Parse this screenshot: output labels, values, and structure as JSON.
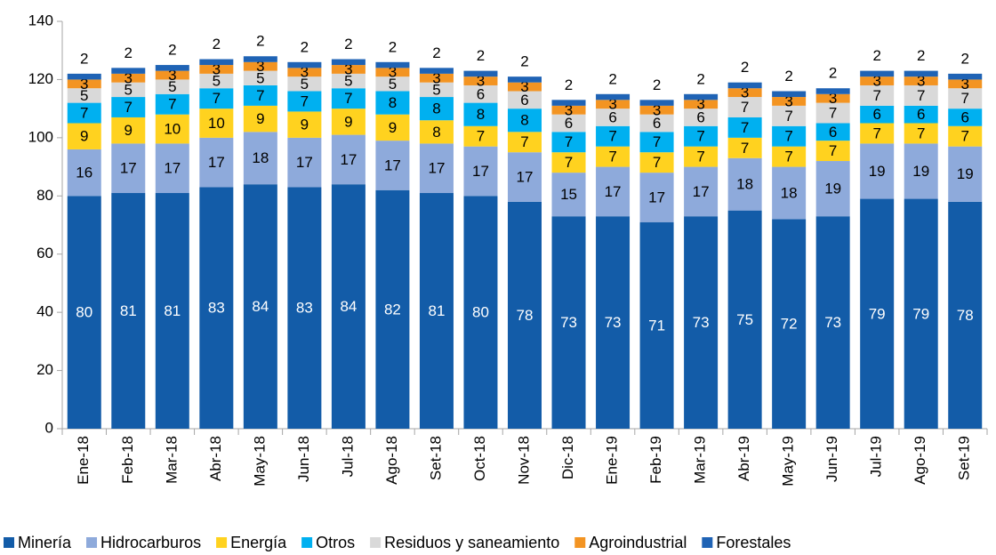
{
  "chart_data": {
    "type": "stacked_bar",
    "categories": [
      "Ene-18",
      "Feb-18",
      "Mar-18",
      "Abr-18",
      "May-18",
      "Jun-18",
      "Jul-18",
      "Ago-18",
      "Set-18",
      "Oct-18",
      "Nov-18",
      "Dic-18",
      "Ene-19",
      "Feb-19",
      "Mar-19",
      "Abr-19",
      "May-19",
      "Jun-19",
      "Jul-19",
      "Ago-19",
      "Set-19"
    ],
    "series": [
      {
        "name": "Minería",
        "color": "#135ca8",
        "values": [
          80,
          81,
          81,
          83,
          84,
          83,
          84,
          82,
          81,
          80,
          78,
          73,
          73,
          71,
          73,
          75,
          72,
          73,
          79,
          79,
          78
        ]
      },
      {
        "name": "Hidrocarburos",
        "color": "#8eaadb",
        "values": [
          16,
          17,
          17,
          17,
          18,
          17,
          17,
          17,
          17,
          17,
          17,
          15,
          17,
          17,
          17,
          18,
          18,
          19,
          19,
          19,
          19
        ]
      },
      {
        "name": "Energía",
        "color": "#ffd21f",
        "values": [
          9,
          9,
          10,
          10,
          9,
          9,
          9,
          9,
          8,
          7,
          7,
          7,
          7,
          7,
          7,
          7,
          7,
          7,
          7,
          7,
          7
        ]
      },
      {
        "name": "Otros",
        "color": "#00b0f0",
        "values": [
          7,
          7,
          7,
          7,
          7,
          7,
          7,
          8,
          8,
          8,
          8,
          7,
          7,
          7,
          7,
          7,
          7,
          6,
          6,
          6,
          6
        ]
      },
      {
        "name": "Residuos y saneamiento",
        "color": "#d9d9d9",
        "values": [
          5,
          5,
          5,
          5,
          5,
          5,
          5,
          5,
          5,
          6,
          6,
          6,
          6,
          6,
          6,
          7,
          7,
          7,
          7,
          7,
          7
        ]
      },
      {
        "name": "Agroindustrial",
        "color": "#f39422",
        "values": [
          3,
          3,
          3,
          3,
          3,
          3,
          3,
          3,
          3,
          3,
          3,
          3,
          3,
          3,
          3,
          3,
          3,
          3,
          3,
          3,
          3
        ]
      },
      {
        "name": "Forestales",
        "color": "#1f63b5",
        "values": [
          2,
          2,
          2,
          2,
          2,
          2,
          2,
          2,
          2,
          2,
          2,
          2,
          2,
          2,
          2,
          2,
          2,
          2,
          2,
          2,
          2
        ]
      }
    ],
    "ylim": [
      0,
      140
    ],
    "yticks": [
      0,
      20,
      40,
      60,
      80,
      100,
      120,
      140
    ],
    "grid": false,
    "legend": "bottom"
  }
}
